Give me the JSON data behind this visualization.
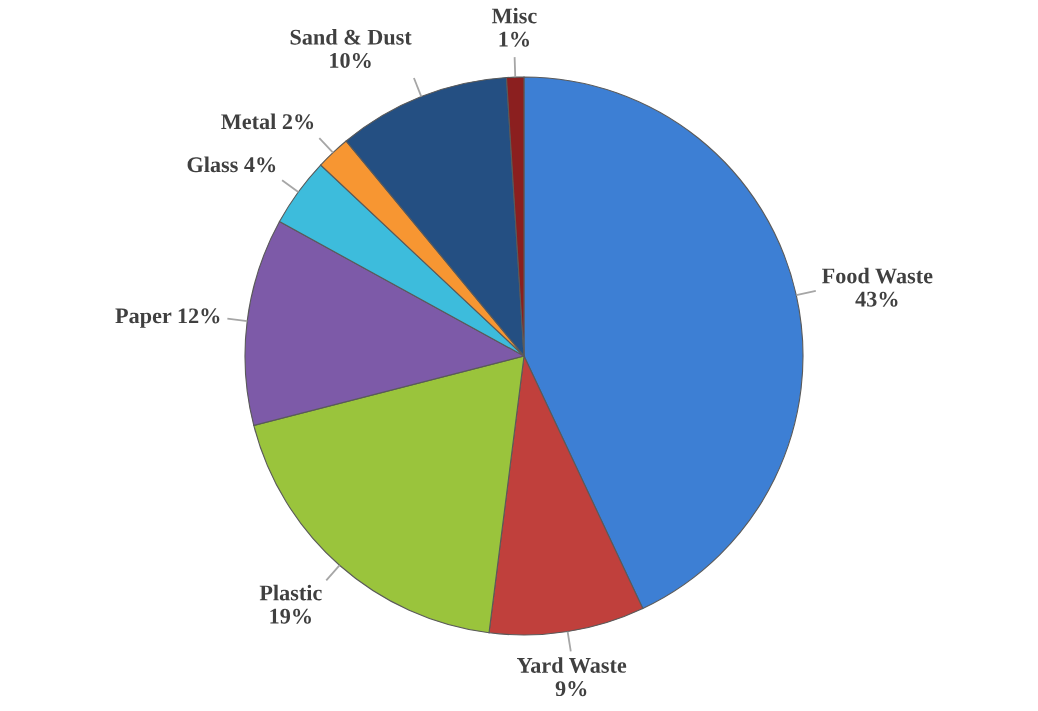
{
  "chart_data": {
    "type": "pie",
    "categories": [
      "Food Waste",
      "Yard Waste",
      "Plastic",
      "Paper",
      "Glass",
      "Metal",
      "Sand & Dust",
      "Misc"
    ],
    "values": [
      43,
      9,
      19,
      12,
      4,
      2,
      10,
      1
    ],
    "colors": [
      "#3d7fd4",
      "#c0403c",
      "#9ac43c",
      "#7d5aa8",
      "#3dbcdc",
      "#f79632",
      "#244f82",
      "#8b1f1f"
    ],
    "value_labels": [
      "43%",
      "9%",
      "19%",
      "12%",
      "4%",
      "2%",
      "10%",
      "1%"
    ]
  }
}
